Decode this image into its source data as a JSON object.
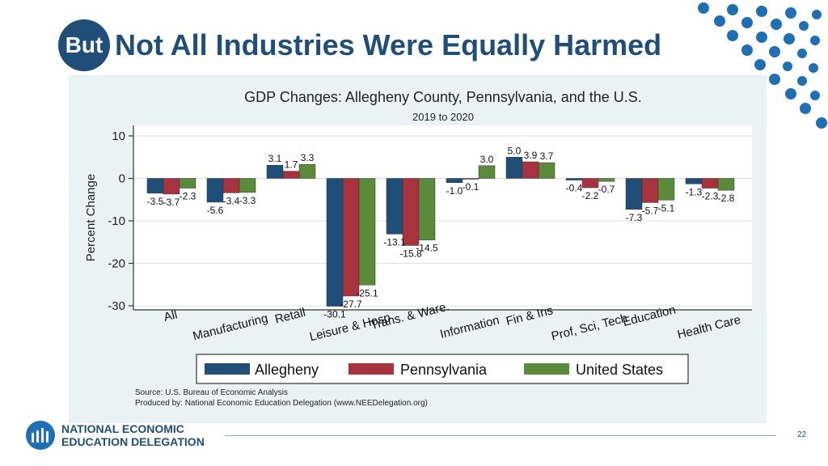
{
  "slide": {
    "badge": "But",
    "title": "Not All Industries Were Equally Harmed",
    "page_number": "22",
    "logo_line1": "NATIONAL ECONOMIC",
    "logo_line2": "EDUCATION DELEGATION",
    "accent_color": "#1f4e79"
  },
  "chart_data": {
    "type": "bar",
    "title": "GDP Changes: Allegheny County, Pennsylvania, and the U.S.",
    "subtitle": "2019 to 2020",
    "xlabel": "",
    "ylabel": "Percent Change",
    "ylim": [
      -30,
      10
    ],
    "yticks": [
      10,
      0,
      -10,
      -20,
      -30
    ],
    "categories": [
      "All",
      "Manufacturing",
      "Retail",
      "Leisure & Hosp",
      "Trans. & Ware.",
      "Information",
      "Fin & Ins",
      "Prof, Sci, Tech",
      "Education",
      "Health Care"
    ],
    "series": [
      {
        "name": "Allegheny",
        "color": "#1f4e79",
        "values": [
          -3.5,
          -5.6,
          3.1,
          -30.1,
          -13.1,
          -1.0,
          5.0,
          -0.4,
          -7.3,
          -1.3
        ]
      },
      {
        "name": "Pennsylvania",
        "color": "#a8333f",
        "values": [
          -3.7,
          -3.4,
          1.7,
          -27.7,
          -15.8,
          -0.1,
          3.9,
          -2.2,
          -5.7,
          -2.3
        ]
      },
      {
        "name": "United States",
        "color": "#5b8a3a",
        "values": [
          -2.3,
          -3.3,
          3.3,
          -25.1,
          -14.5,
          3.0,
          3.7,
          -0.7,
          -5.1,
          -2.8
        ]
      }
    ],
    "labels": [
      [
        "-3.5",
        "-3.7",
        "-2.3"
      ],
      [
        "-5.6",
        "-3.4",
        "-3.3"
      ],
      [
        "3.1",
        "1.7",
        "3.3"
      ],
      [
        "-30.1",
        "-27.7",
        "-25.1"
      ],
      [
        "-13.1",
        "-15.8",
        "-14.5"
      ],
      [
        "-1.0",
        "-0.1",
        "3.0"
      ],
      [
        "5.0",
        "3.9",
        "3.7"
      ],
      [
        "-0.4",
        "-2.2",
        "-0.7"
      ],
      [
        "-7.3",
        "-5.7",
        "-5.1"
      ],
      [
        "-1.3",
        "-2.3",
        "-2.8"
      ]
    ],
    "legend": [
      "Allegheny",
      "Pennsylvania",
      "United States"
    ],
    "legend_position": "bottom",
    "source": "Source: U.S. Bureau of Economic Analysis",
    "produced_by": "Produced by: National Economic Education Delegation (www.NEEDelegation.org)"
  }
}
